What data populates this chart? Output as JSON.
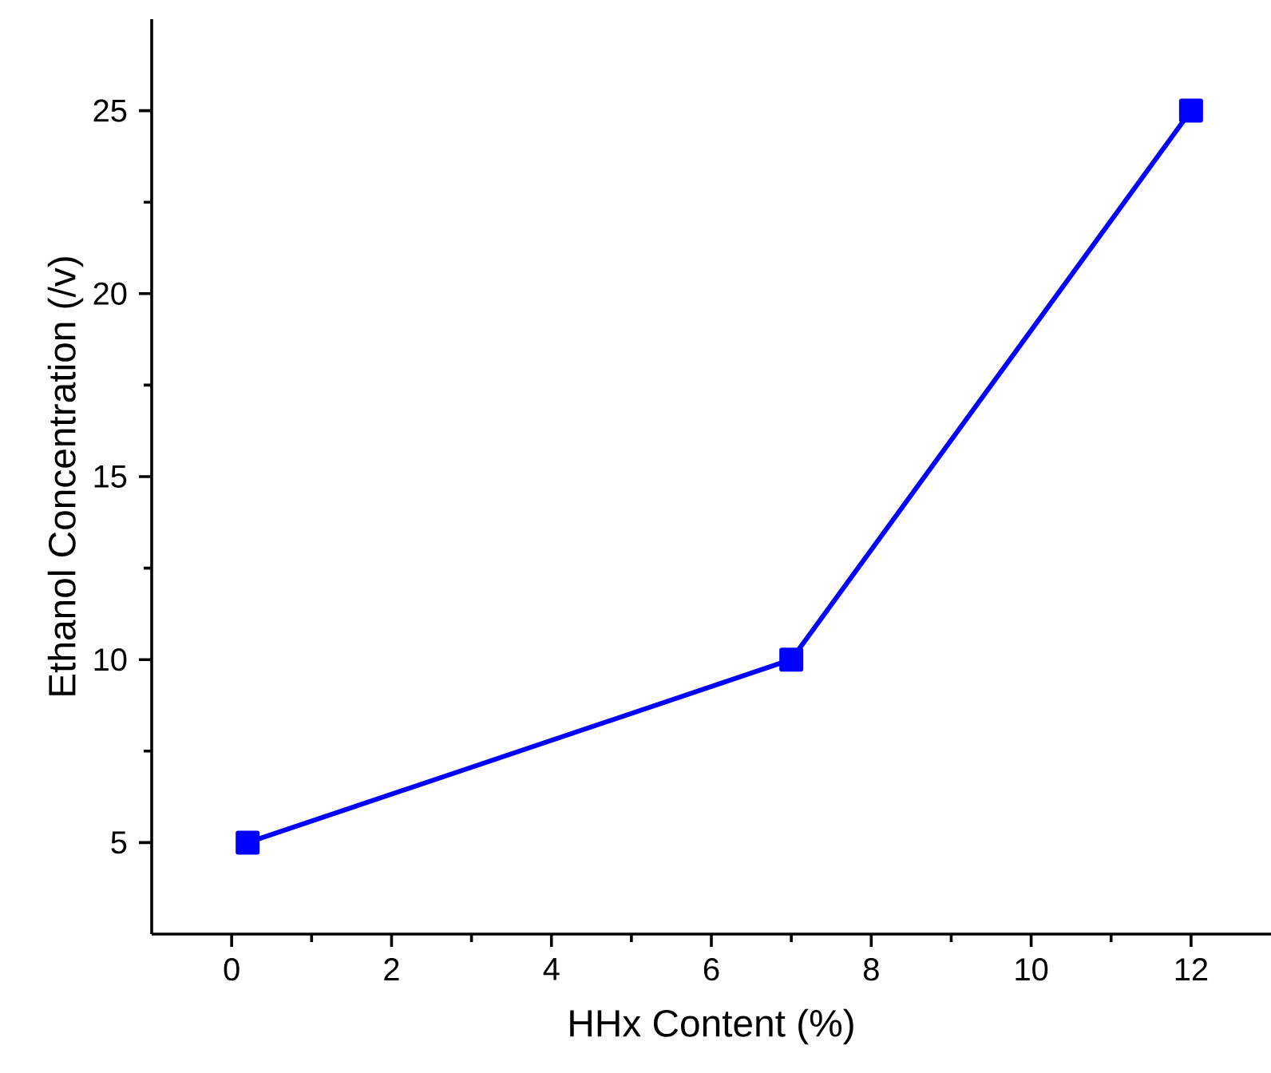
{
  "chart_data": {
    "type": "line",
    "xlabel": "HHx Content (%)",
    "ylabel": "Ethanol Concentration (/v)",
    "x": [
      0.2,
      7,
      12
    ],
    "series": [
      {
        "color": "#0000ff",
        "values": [
          5,
          10,
          25
        ]
      }
    ],
    "marker": "square",
    "line_style": "solid",
    "xlim": [
      -1,
      13
    ],
    "ylim": [
      2.5,
      27.5
    ],
    "xticks": [
      0,
      2,
      4,
      6,
      8,
      10,
      12
    ],
    "yticks": [
      5,
      10,
      15,
      20,
      25
    ]
  }
}
